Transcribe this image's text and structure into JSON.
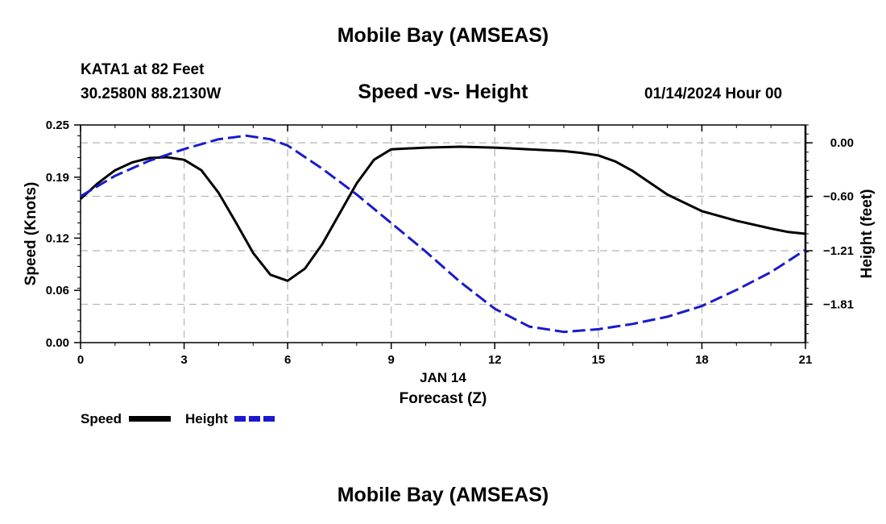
{
  "page": {
    "title": "Mobile Bay (AMSEAS)",
    "station": "KATA1 at 82 Feet",
    "coords": "30.2580N  88.2130W",
    "subtitle": "Speed -vs- Height",
    "datetime": "01/14/2024 Hour 00",
    "bottom_title": "Mobile Bay (AMSEAS)"
  },
  "legend": {
    "speed_label": "Speed",
    "height_label": "Height"
  },
  "colors": {
    "speed": "#000000",
    "height": "#1a1acc",
    "grid": "#b4b4b4"
  },
  "chart_data": {
    "type": "line",
    "title": "Speed -vs- Height",
    "xlabel": "Forecast (Z)",
    "xdate_label": "JAN 14",
    "ylabel": "Speed (Knots)",
    "y2label": "Height (feet)",
    "xlim": [
      0,
      21
    ],
    "ylim": [
      0,
      0.25
    ],
    "y2lim": [
      -2.24,
      0.2
    ],
    "xticks": [
      0,
      3,
      6,
      9,
      12,
      15,
      18,
      21
    ],
    "xtick_labels": [
      "0",
      "3",
      "6",
      "9",
      "12",
      "15",
      "18",
      "21"
    ],
    "yticks": [
      0,
      0.06,
      0.12,
      0.19,
      0.25
    ],
    "ytick_labels": [
      "0.00",
      "0.06",
      "0.12",
      "0.19",
      "0.25"
    ],
    "y2ticks": [
      0.0,
      -0.6,
      -1.21,
      -1.81
    ],
    "y2tick_labels": [
      "0.00",
      "−0.60",
      "−1.21",
      "−1.81"
    ],
    "grid": true,
    "series": [
      {
        "name": "Speed",
        "axis": "left",
        "style": "solid",
        "color": "#000000",
        "x": [
          0,
          0.5,
          1,
          1.5,
          2,
          2.5,
          3,
          3.5,
          4,
          4.5,
          5,
          5.5,
          6,
          6.5,
          7,
          7.5,
          8,
          8.5,
          9,
          10,
          11,
          12,
          13,
          14,
          14.5,
          15,
          15.5,
          16,
          17,
          18,
          19,
          20,
          20.5,
          21
        ],
        "values": [
          0.165,
          0.183,
          0.198,
          0.207,
          0.212,
          0.213,
          0.21,
          0.198,
          0.172,
          0.138,
          0.103,
          0.078,
          0.071,
          0.085,
          0.113,
          0.148,
          0.183,
          0.21,
          0.222,
          0.224,
          0.225,
          0.224,
          0.222,
          0.22,
          0.218,
          0.215,
          0.208,
          0.197,
          0.17,
          0.151,
          0.14,
          0.131,
          0.127,
          0.125
        ]
      },
      {
        "name": "Height",
        "axis": "right",
        "style": "dashed",
        "color": "#1a1acc",
        "x": [
          0,
          1,
          2,
          3,
          4,
          4.8,
          5.5,
          6,
          7,
          8,
          9,
          10,
          11,
          12,
          13,
          14,
          15,
          16,
          17,
          18,
          19,
          20,
          21
        ],
        "values": [
          -0.6,
          -0.37,
          -0.2,
          -0.07,
          0.04,
          0.08,
          0.04,
          -0.03,
          -0.29,
          -0.58,
          -0.9,
          -1.22,
          -1.56,
          -1.86,
          -2.06,
          -2.12,
          -2.09,
          -2.03,
          -1.95,
          -1.83,
          -1.65,
          -1.45,
          -1.2
        ]
      }
    ]
  }
}
